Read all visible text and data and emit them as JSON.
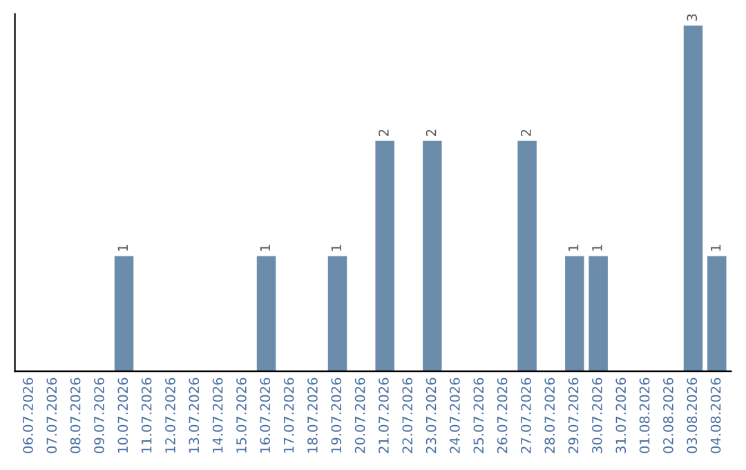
{
  "chart_data": {
    "type": "bar",
    "categories": [
      "06.07.2026",
      "07.07.2026",
      "08.07.2026",
      "09.07.2026",
      "10.07.2026",
      "11.07.2026",
      "12.07.2026",
      "13.07.2026",
      "14.07.2026",
      "15.07.2026",
      "16.07.2026",
      "17.07.2026",
      "18.07.2026",
      "19.07.2026",
      "20.07.2026",
      "21.07.2026",
      "22.07.2026",
      "23.07.2026",
      "24.07.2026",
      "25.07.2026",
      "26.07.2026",
      "27.07.2026",
      "28.07.2026",
      "29.07.2026",
      "30.07.2026",
      "31.07.2026",
      "01.08.2026",
      "02.08.2026",
      "03.08.2026",
      "04.08.2026"
    ],
    "values": [
      0,
      0,
      0,
      0,
      1,
      0,
      0,
      0,
      0,
      0,
      1,
      0,
      0,
      1,
      0,
      2,
      0,
      2,
      0,
      0,
      0,
      2,
      0,
      1,
      1,
      0,
      0,
      0,
      3,
      1
    ],
    "value_labels": [
      null,
      null,
      null,
      null,
      "1",
      null,
      null,
      null,
      null,
      null,
      "1",
      null,
      null,
      "1",
      null,
      "2",
      null,
      "2",
      null,
      null,
      null,
      "2",
      null,
      "1",
      "1",
      null,
      null,
      null,
      "3",
      "1"
    ],
    "color": "#6b8cab",
    "ylim": [
      0,
      3.1
    ],
    "tick_labels": "x",
    "grid": false
  }
}
